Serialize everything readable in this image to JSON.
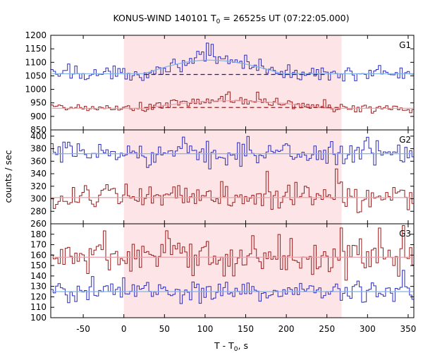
{
  "chart_data": {
    "type": "line",
    "title": "KONUS-WIND 140101 T0 = 26525s UT (07:22:05.000)",
    "title_parts": {
      "pre": "KONUS-WIND 140101 T",
      "sub": "0",
      "post": " = 26525s UT (07:22:05.000)"
    },
    "xlabel": "T - T0, s",
    "xlabel_parts": {
      "pre": "T - T",
      "sub": "0",
      "post": ", s"
    },
    "ylabel": "counts / sec",
    "xlim": [
      -90,
      357
    ],
    "x_ticks": [
      -50,
      0,
      50,
      100,
      150,
      200,
      250,
      300,
      350
    ],
    "highlight_interval": [
      0,
      268
    ],
    "highlight_color": "#fde4e6",
    "colors": {
      "blue": "#2c2cc0",
      "red": "#9b1c1c",
      "fit_blue": "#7fb2e8",
      "fit_red": "#e8a0a8",
      "dashed": "#1a1aa0"
    },
    "panels": [
      {
        "label": "G1",
        "ylim": [
          850,
          1200
        ],
        "y_ticks": [
          850,
          900,
          950,
          1000,
          1050,
          1100,
          1150,
          1200
        ],
        "series": [
          {
            "color": "blue",
            "baseline": 1058,
            "noise": 12,
            "pulse": {
              "start": 25,
              "peak": 105,
              "end": 195,
              "amplitude": 50
            },
            "bg_level": 1055,
            "spikes": [
              [
                -68,
                25
              ],
              [
                -60,
                22
              ],
              [
                90,
                25
              ],
              [
                102,
                60
              ],
              [
                108,
                45
              ],
              [
                150,
                32
              ],
              [
                168,
                30
              ],
              [
                277,
                22
              ],
              [
                314,
                18
              ]
            ]
          },
          {
            "color": "red",
            "baseline": 930,
            "noise": 9,
            "pulse": {
              "start": 25,
              "peak": 130,
              "end": 250,
              "amplitude": 28
            },
            "bg_level": 933,
            "spikes": [
              [
                -76,
                12
              ],
              [
                40,
                18
              ],
              [
                128,
                33
              ],
              [
                165,
                25
              ],
              [
                246,
                20
              ],
              [
                313,
                12
              ]
            ]
          }
        ]
      },
      {
        "label": "G2",
        "ylim": [
          260,
          410
        ],
        "y_ticks": [
          260,
          280,
          300,
          320,
          340,
          360,
          380,
          400
        ],
        "series": [
          {
            "color": "blue",
            "baseline": 372,
            "noise": 9,
            "spikes": [
              [
                -50,
                14
              ],
              [
                20,
                14
              ],
              [
                73,
                18
              ],
              [
                148,
                26
              ],
              [
                154,
                14
              ],
              [
                255,
                14
              ],
              [
                300,
                12
              ],
              [
                338,
                12
              ]
            ]
          },
          {
            "color": "red",
            "baseline": 302,
            "noise": 10,
            "spikes": [
              [
                -46,
                14
              ],
              [
                57,
                12
              ],
              [
                120,
                20
              ],
              [
                126,
                25
              ],
              [
                178,
                28
              ],
              [
                263,
                32
              ],
              [
                267,
                14
              ]
            ]
          }
        ]
      },
      {
        "label": "G3",
        "ylim": [
          100,
          190
        ],
        "y_ticks": [
          100,
          110,
          120,
          130,
          140,
          150,
          160,
          170,
          180
        ],
        "series": [
          {
            "color": "red",
            "baseline": 158,
            "noise": 8,
            "spikes": [
              [
                -25,
                12
              ],
              [
                54,
                12
              ],
              [
                82,
                14
              ],
              [
                103,
                14
              ],
              [
                190,
                12
              ],
              [
                267,
                22
              ],
              [
                277,
                14
              ],
              [
                316,
                12
              ],
              [
                343,
                10
              ]
            ]
          },
          {
            "color": "blue",
            "baseline": 125,
            "noise": 5.5,
            "spikes": [
              [
                -40,
                8
              ],
              [
                84,
                10
              ],
              [
                153,
                8
              ],
              [
                198,
                8
              ],
              [
                287,
                6
              ],
              [
                343,
                14
              ]
            ]
          }
        ]
      }
    ]
  }
}
